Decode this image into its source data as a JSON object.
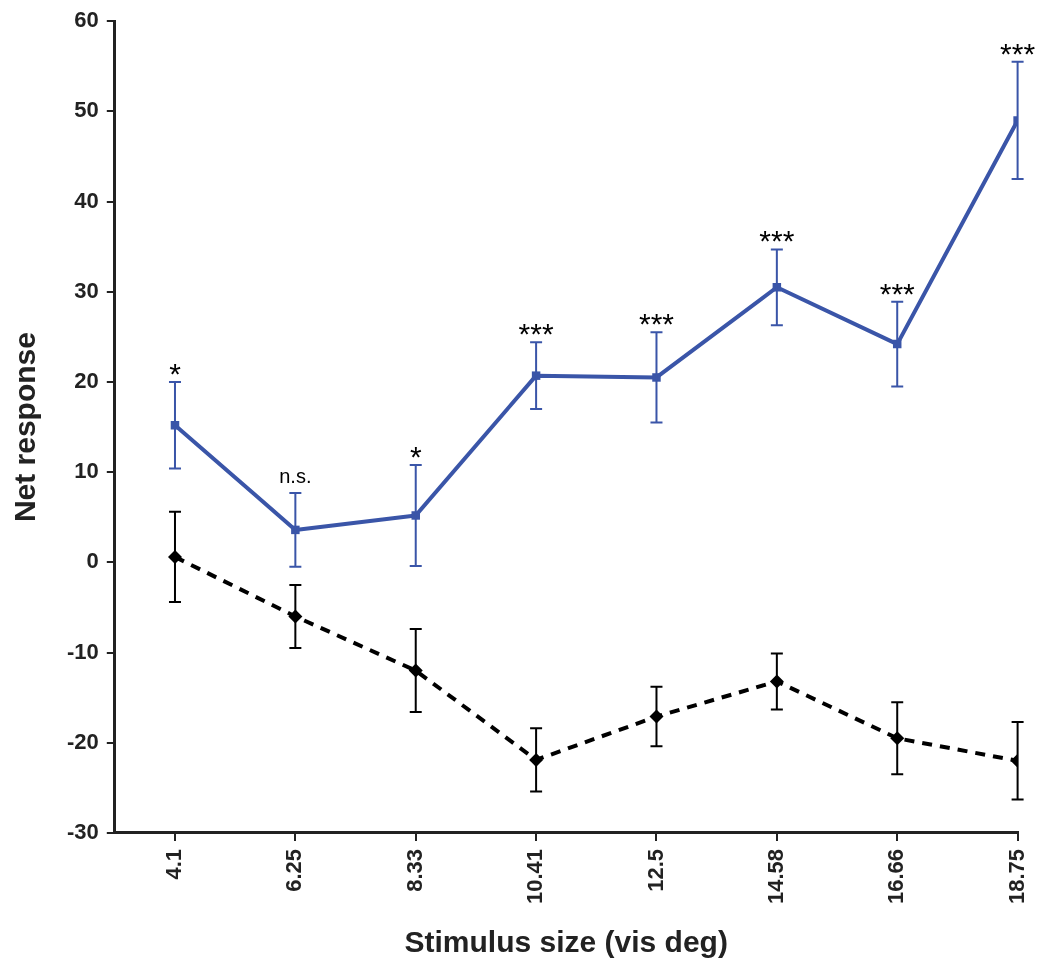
{
  "chart_data": {
    "type": "line",
    "xlabel": "Stimulus size (vis deg)",
    "ylabel": "Net response",
    "categories": [
      "4.1",
      "6.25",
      "8.33",
      "10.41",
      "12.5",
      "14.58",
      "16.66",
      "18.75"
    ],
    "series": [
      {
        "color": "#3a55a8",
        "marker": "square",
        "line_style": "solid",
        "values": [
          15.2,
          3.6,
          5.2,
          20.7,
          20.5,
          30.5,
          24.2,
          49.0
        ],
        "errors": [
          4.8,
          4.1,
          5.6,
          3.7,
          5.0,
          4.2,
          4.7,
          6.5
        ]
      },
      {
        "color": "#000000",
        "marker": "diamond",
        "line_style": "dashed",
        "values": [
          0.6,
          -6.0,
          -12.0,
          -21.9,
          -17.1,
          -13.2,
          -19.5,
          -22.0
        ],
        "errors": [
          5.0,
          3.5,
          4.6,
          3.5,
          3.3,
          3.1,
          4.0,
          4.3
        ]
      }
    ],
    "ylim": [
      -30,
      60
    ],
    "yticks": [
      -30,
      -20,
      -10,
      0,
      10,
      20,
      30,
      40,
      50,
      60
    ],
    "grid": false,
    "annotations": [
      "*",
      "n.s.",
      "*",
      "***",
      "***",
      "***",
      "***",
      "***"
    ]
  }
}
